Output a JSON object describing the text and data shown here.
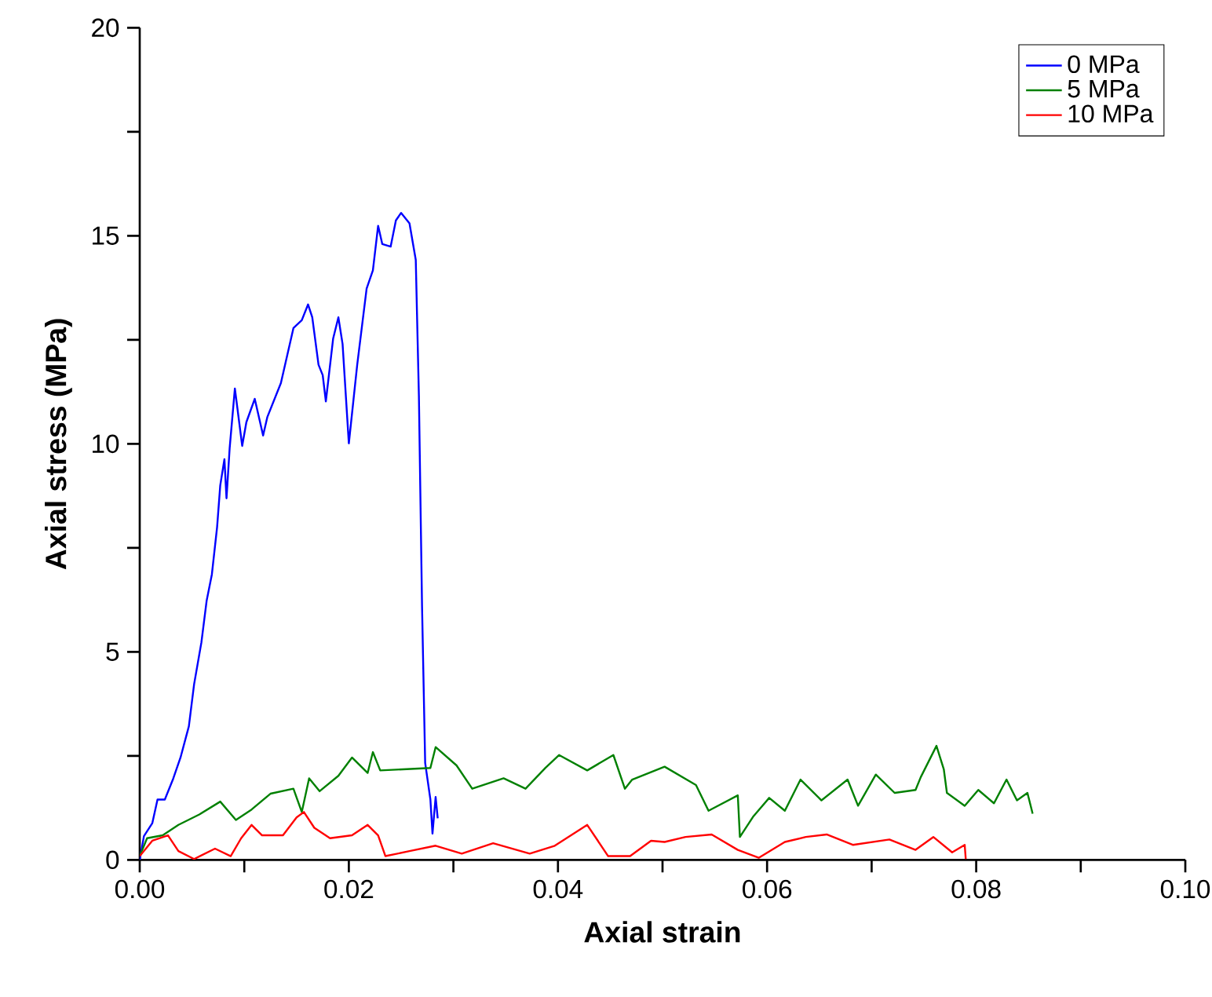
{
  "chart_data": {
    "type": "line",
    "xlabel": "Axial strain",
    "ylabel": "Axial stress (MPa)",
    "xlim": [
      0,
      0.1
    ],
    "ylim": [
      0,
      20
    ],
    "xticks": [
      {
        "value": 0,
        "label": "0.00"
      },
      {
        "value": 0.01,
        "label": null
      },
      {
        "value": 0.02,
        "label": "0.02"
      },
      {
        "value": 0.03,
        "label": null
      },
      {
        "value": 0.04,
        "label": "0.04"
      },
      {
        "value": 0.05,
        "label": null
      },
      {
        "value": 0.06,
        "label": "0.06"
      },
      {
        "value": 0.07,
        "label": null
      },
      {
        "value": 0.08,
        "label": "0.08"
      },
      {
        "value": 0.09,
        "label": null
      },
      {
        "value": 0.1,
        "label": "0.10"
      }
    ],
    "yticks": [
      0,
      {
        "value": 2.5,
        "label": null
      },
      5,
      {
        "value": 7.5,
        "label": null
      },
      10,
      {
        "value": 12.5,
        "label": null
      },
      15,
      {
        "value": 17.5,
        "label": null
      },
      20
    ],
    "legend": "top right",
    "series": [
      {
        "name": "0 MPa",
        "color": "#0000ff",
        "x": [
          0,
          0.0004,
          0.0012,
          0.0017,
          0.0024,
          0.0032,
          0.0039,
          0.0047,
          0.0052,
          0.0059,
          0.0064,
          0.0069,
          0.0074,
          0.0077,
          0.0081,
          0.0083,
          0.0086,
          0.0091,
          0.0098,
          0.0102,
          0.011,
          0.0118,
          0.0122,
          0.0135,
          0.0147,
          0.0155,
          0.0161,
          0.0165,
          0.0171,
          0.0175,
          0.0178,
          0.0185,
          0.019,
          0.0194,
          0.02,
          0.0208,
          0.0217,
          0.0223,
          0.0228,
          0.0232,
          0.024,
          0.0245,
          0.025,
          0.0258,
          0.0264,
          0.0267,
          0.027,
          0.0273,
          0.0278,
          0.028,
          0.0283,
          0.0285
        ],
        "values": [
          0,
          0.57,
          0.88,
          1.45,
          1.45,
          1.95,
          2.46,
          3.21,
          4.22,
          5.23,
          6.23,
          6.86,
          8.0,
          9.0,
          9.63,
          8.69,
          9.89,
          11.33,
          9.95,
          10.52,
          11.08,
          10.2,
          10.64,
          11.46,
          12.78,
          12.97,
          13.35,
          13.04,
          11.9,
          11.65,
          11.02,
          12.53,
          13.04,
          12.4,
          10.01,
          11.9,
          13.73,
          14.17,
          15.24,
          14.8,
          14.74,
          15.37,
          15.55,
          15.3,
          14.42,
          11.15,
          6.1,
          2.33,
          1.45,
          0.63,
          1.51,
          1.0
        ]
      },
      {
        "name": "5 MPa",
        "color": "#008000",
        "x": [
          0,
          0.0007,
          0.0022,
          0.0037,
          0.0057,
          0.0077,
          0.0092,
          0.0107,
          0.0125,
          0.0147,
          0.0155,
          0.0162,
          0.0172,
          0.019,
          0.0203,
          0.0218,
          0.0223,
          0.023,
          0.0278,
          0.0283,
          0.0303,
          0.0318,
          0.0348,
          0.0369,
          0.0388,
          0.0401,
          0.0428,
          0.0453,
          0.0464,
          0.0471,
          0.0502,
          0.0532,
          0.0544,
          0.0572,
          0.0574,
          0.0587,
          0.0602,
          0.0617,
          0.0632,
          0.0652,
          0.0677,
          0.0687,
          0.0704,
          0.0722,
          0.0742,
          0.0747,
          0.0762,
          0.0769,
          0.0772,
          0.0789,
          0.0802,
          0.0817,
          0.0829,
          0.0839,
          0.0849,
          0.0854
        ],
        "values": [
          0.09,
          0.52,
          0.59,
          0.84,
          1.09,
          1.4,
          0.96,
          1.21,
          1.59,
          1.71,
          1.15,
          1.96,
          1.65,
          2.02,
          2.46,
          2.09,
          2.59,
          2.15,
          2.21,
          2.71,
          2.27,
          1.71,
          1.96,
          1.71,
          2.21,
          2.52,
          2.15,
          2.52,
          1.71,
          1.93,
          2.24,
          1.8,
          1.18,
          1.55,
          0.55,
          1.05,
          1.49,
          1.18,
          1.93,
          1.43,
          1.93,
          1.3,
          2.05,
          1.61,
          1.68,
          1.99,
          2.74,
          2.18,
          1.61,
          1.3,
          1.68,
          1.36,
          1.93,
          1.43,
          1.61,
          1.11
        ]
      },
      {
        "name": "10 MPa",
        "color": "#ff0000",
        "x": [
          0,
          0.0012,
          0.0027,
          0.0037,
          0.0052,
          0.0072,
          0.0087,
          0.0097,
          0.0107,
          0.0117,
          0.0137,
          0.015,
          0.0157,
          0.0167,
          0.0182,
          0.0203,
          0.0218,
          0.0228,
          0.0235,
          0.0258,
          0.0283,
          0.0308,
          0.0338,
          0.0373,
          0.0397,
          0.0428,
          0.0448,
          0.0469,
          0.0489,
          0.0502,
          0.0522,
          0.0547,
          0.0572,
          0.0592,
          0.0617,
          0.0637,
          0.0657,
          0.0682,
          0.0717,
          0.0742,
          0.0759,
          0.0777,
          0.0789,
          0.079
        ],
        "values": [
          0.09,
          0.46,
          0.59,
          0.21,
          0.02,
          0.27,
          0.09,
          0.52,
          0.84,
          0.59,
          0.59,
          1.02,
          1.15,
          0.77,
          0.52,
          0.59,
          0.84,
          0.59,
          0.09,
          0.21,
          0.34,
          0.15,
          0.4,
          0.15,
          0.34,
          0.84,
          0.09,
          0.09,
          0.46,
          0.43,
          0.55,
          0.61,
          0.24,
          0.05,
          0.43,
          0.55,
          0.61,
          0.36,
          0.49,
          0.24,
          0.55,
          0.18,
          0.36,
          0.02
        ]
      }
    ]
  }
}
